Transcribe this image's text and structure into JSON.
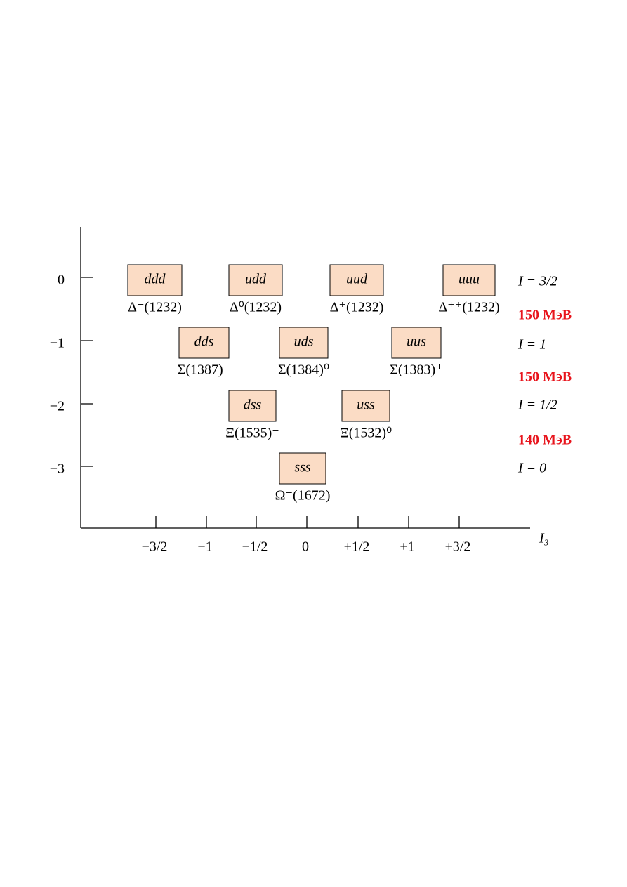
{
  "y_axis": {
    "labels": [
      "0",
      "−1",
      "−2",
      "−3"
    ]
  },
  "x_axis": {
    "labels": [
      "−3/2",
      "−1",
      "−1/2",
      "0",
      "+1/2",
      "+1",
      "+3/2"
    ],
    "title": "I₃"
  },
  "states": [
    {
      "quarks": "ddd",
      "particle": "Δ⁻(1232)"
    },
    {
      "quarks": "udd",
      "particle": "Δ⁰(1232)"
    },
    {
      "quarks": "uud",
      "particle": "Δ⁺(1232)"
    },
    {
      "quarks": "uuu",
      "particle": "Δ⁺⁺(1232)"
    },
    {
      "quarks": "dds",
      "particle": "Σ(1387)⁻"
    },
    {
      "quarks": "uds",
      "particle": "Σ(1384)⁰"
    },
    {
      "quarks": "uus",
      "particle": "Σ(1383)⁺"
    },
    {
      "quarks": "dss",
      "particle": "Ξ(1535)⁻"
    },
    {
      "quarks": "uss",
      "particle": "Ξ(1532)⁰"
    },
    {
      "quarks": "sss",
      "particle": "Ω⁻(1672)"
    }
  ],
  "isospin_labels": [
    "I = 3/2",
    "I = 1",
    "I = 1/2",
    "I = 0"
  ],
  "mass_gaps": [
    "150 МэВ",
    "150 МэВ",
    "140 МэВ"
  ]
}
